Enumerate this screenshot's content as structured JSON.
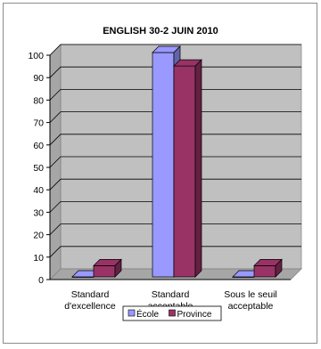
{
  "chart_data": {
    "type": "bar",
    "title": "ENGLISH 30-2 JUIN 2010",
    "categories": [
      [
        "Standard",
        "d'excellence"
      ],
      [
        "Standard",
        "acceptable"
      ],
      [
        "Sous le seuil",
        "acceptable"
      ]
    ],
    "series": [
      {
        "name": "École",
        "values": [
          0,
          100,
          0
        ],
        "color": "#9999ff"
      },
      {
        "name": "Province",
        "values": [
          5,
          94,
          5
        ],
        "color": "#993366"
      }
    ],
    "ylim": [
      0,
      100
    ],
    "yticks": [
      0,
      10,
      20,
      30,
      40,
      50,
      60,
      70,
      80,
      90,
      100
    ],
    "grid": true,
    "legend_position": "bottom",
    "plot_colors": {
      "wall": "#c0c0c0",
      "floor": "#a6a6a6",
      "gridline": "#000000"
    }
  }
}
